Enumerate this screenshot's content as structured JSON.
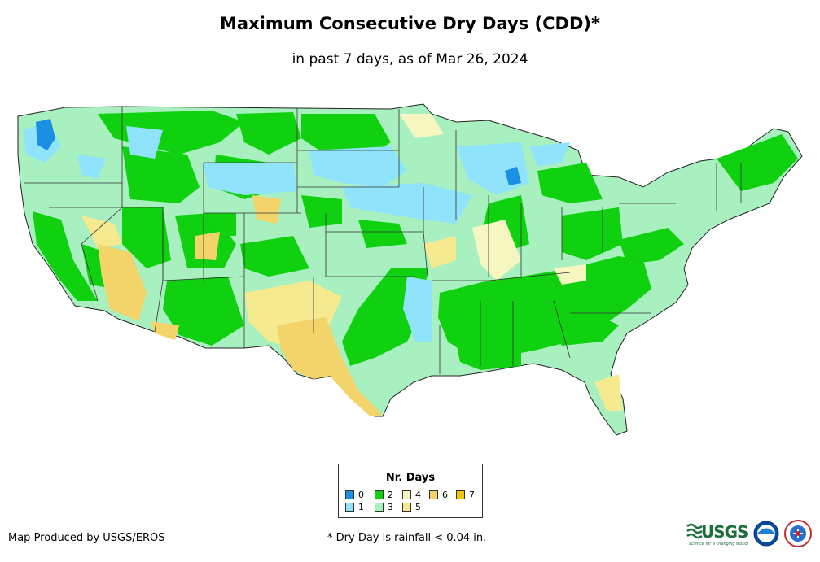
{
  "title": "Maximum Consecutive Dry Days (CDD)*",
  "subtitle": "in past 7 days, as of Mar 26, 2024",
  "legend": {
    "title": "Nr. Days",
    "items": [
      {
        "label": "0",
        "color": "#1a8fe3"
      },
      {
        "label": "1",
        "color": "#8fe3fb"
      },
      {
        "label": "2",
        "color": "#0fd10f"
      },
      {
        "label": "3",
        "color": "#a8f0c0"
      },
      {
        "label": "4",
        "color": "#f6f6c0"
      },
      {
        "label": "5",
        "color": "#f6ea90"
      },
      {
        "label": "6",
        "color": "#f3d46a"
      },
      {
        "label": "7",
        "color": "#f5c400"
      }
    ]
  },
  "footer": {
    "producer": "Map Produced by USGS/EROS",
    "footnote": "* Dry Day is rainfall < 0.04 in."
  },
  "logos": {
    "usgs": "USGS",
    "usgs_tagline": "science for a changing world"
  }
}
